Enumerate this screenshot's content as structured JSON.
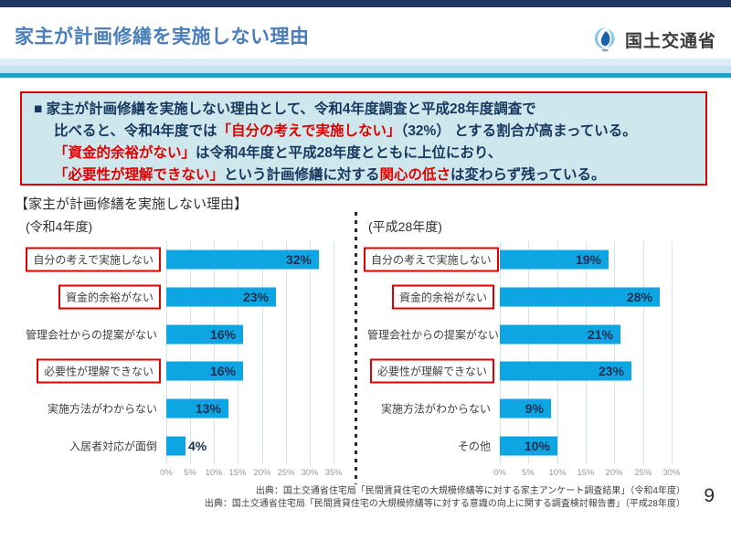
{
  "header": {
    "title": "家主が計画修繕を実施しない理由",
    "agency": "国土交通省"
  },
  "summary_box": {
    "lines": [
      [
        {
          "text": "■ 家主が計画修繕を実施しない理由として、令和4年度調査と平成28年度調査で",
          "color": "navy"
        }
      ],
      [
        {
          "text": "比べると、令和4年度では",
          "color": "navy"
        },
        {
          "text": "「自分の考えで実施しない」",
          "color": "red"
        },
        {
          "text": "（32%） とする割合が高まっている。",
          "color": "navy"
        }
      ],
      [
        {
          "text": "「資金的余裕がない」",
          "color": "red"
        },
        {
          "text": "は令和4年度と平成28年度とともに上位におり、",
          "color": "navy"
        }
      ],
      [
        {
          "text": "「必要性が理解できない」",
          "color": "red"
        },
        {
          "text": "という計画修繕に対する",
          "color": "navy"
        },
        {
          "text": "関心の低さ",
          "color": "red"
        },
        {
          "text": "は変わらず残っている。",
          "color": "navy"
        }
      ]
    ]
  },
  "section_heading": "【家主が計画修繕を実施しない理由】",
  "chart_data": [
    {
      "type": "bar",
      "orientation": "horizontal",
      "title": "(令和4年度)",
      "categories": [
        "自分の考えで実施しない",
        "資金的余裕がない",
        "管理会社からの提案がない",
        "必要性が理解できない",
        "実施方法がわからない",
        "入居者対応が面倒"
      ],
      "values": [
        32,
        23,
        16,
        16,
        13,
        4
      ],
      "value_labels": [
        "32%",
        "23%",
        "16%",
        "16%",
        "13%",
        "4%"
      ],
      "highlighted": [
        true,
        true,
        false,
        true,
        false,
        false
      ],
      "xlim": [
        0,
        35
      ],
      "tick_labels": [
        "0%",
        "5%",
        "10%",
        "15%",
        "20%",
        "25%",
        "30%",
        "35%"
      ],
      "grid": true,
      "legend": false,
      "xlabel": "",
      "ylabel": ""
    },
    {
      "type": "bar",
      "orientation": "horizontal",
      "title": "(平成28年度)",
      "categories": [
        "自分の考えで実施しない",
        "資金的余裕がない",
        "管理会社からの提案がない",
        "必要性が理解できない",
        "実施方法がわからない",
        "その他"
      ],
      "values": [
        19,
        28,
        21,
        23,
        9,
        10
      ],
      "value_labels": [
        "19%",
        "28%",
        "21%",
        "23%",
        "9%",
        "10%"
      ],
      "highlighted": [
        true,
        true,
        false,
        true,
        false,
        false
      ],
      "xlim": [
        0,
        30
      ],
      "tick_labels": [
        "0%",
        "5%",
        "10%",
        "15%",
        "20%",
        "25%",
        "30%"
      ],
      "grid": true,
      "legend": false,
      "xlabel": "",
      "ylabel": ""
    }
  ],
  "sources": [
    "出典：国土交通省住宅局「民間賃貸住宅の大規模修繕等に対する家主アンケート調査結果」（令和4年度）",
    "出典：国土交通省住宅局「民間賃貸住宅の大規模修繕等に対する意識の向上に関する調査検討報告書」（平成28年度）"
  ],
  "page_number": "9",
  "colors": {
    "accent_bar": "#1f3864",
    "title_blue": "#4a7ebb",
    "stripe1": "#ddecf7",
    "stripe2": "#c8e1f1",
    "stripe_teal": "#21a3c9",
    "box_bg": "#cde7ec",
    "box_border": "#e00000",
    "text_navy": "#17375e",
    "text_red": "#e00000",
    "bar": "#0da6e2",
    "grid": "#d5e3ee",
    "value_label": "#1c2d50",
    "category_text": "#3f3f3f",
    "tick_text": "#989898",
    "divider_dot": "#2b2b2b"
  }
}
